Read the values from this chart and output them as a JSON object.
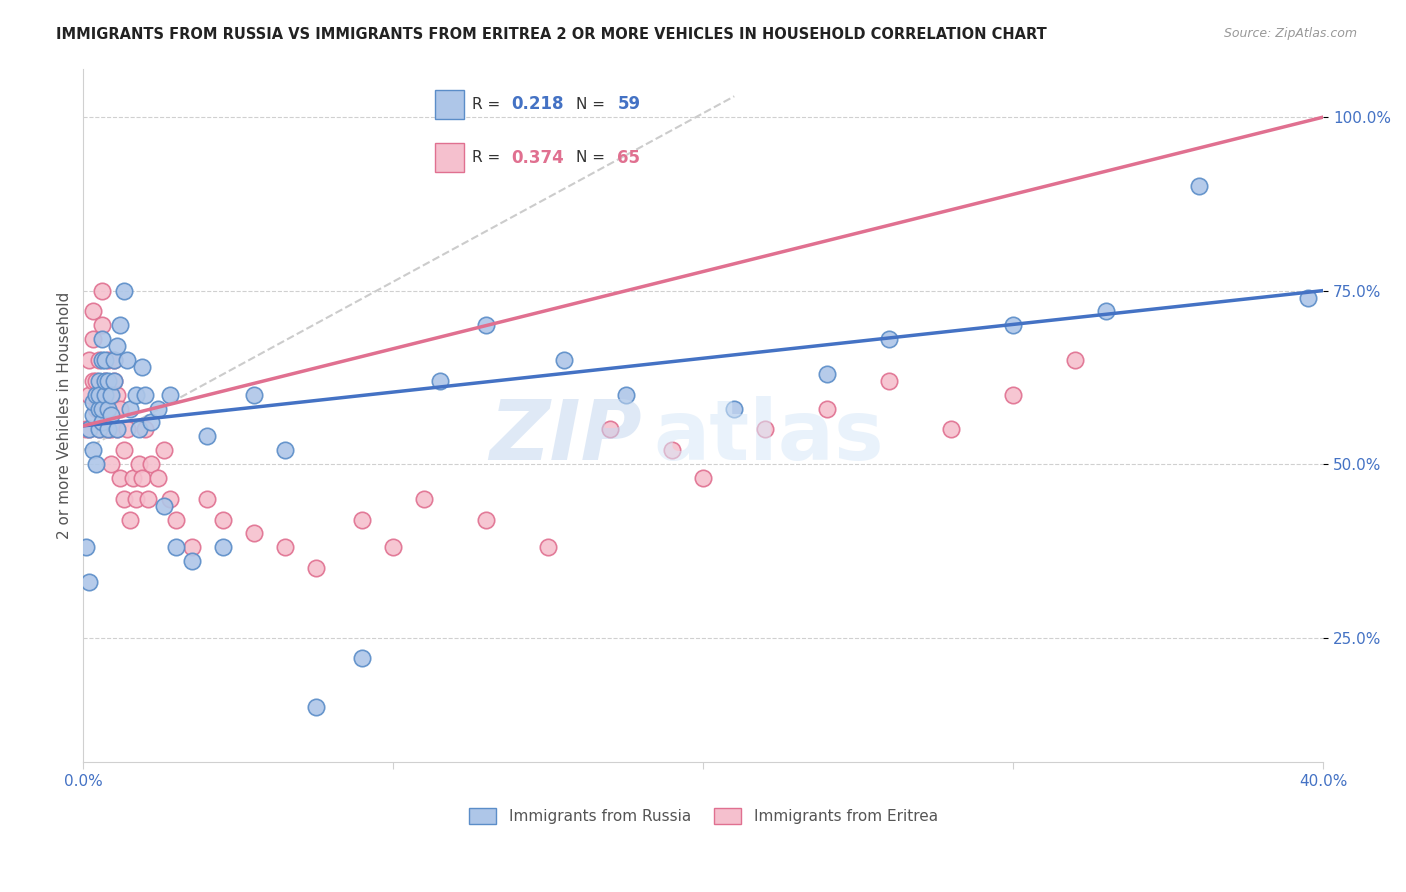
{
  "title": "IMMIGRANTS FROM RUSSIA VS IMMIGRANTS FROM ERITREA 2 OR MORE VEHICLES IN HOUSEHOLD CORRELATION CHART",
  "source": "Source: ZipAtlas.com",
  "ylabel": "2 or more Vehicles in Household",
  "xlim": [
    0.0,
    0.4
  ],
  "ylim": [
    0.07,
    1.07
  ],
  "xticks": [
    0.0,
    0.1,
    0.2,
    0.3,
    0.4
  ],
  "xticklabels": [
    "0.0%",
    "",
    "",
    "",
    "40.0%"
  ],
  "yticks": [
    0.25,
    0.5,
    0.75,
    1.0
  ],
  "yticklabels": [
    "25.0%",
    "50.0%",
    "75.0%",
    "100.0%"
  ],
  "russia_R": 0.218,
  "russia_N": 59,
  "eritrea_R": 0.374,
  "eritrea_N": 65,
  "russia_color": "#aec6e8",
  "eritrea_color": "#f5c0ce",
  "russia_edge_color": "#5b8dc8",
  "eritrea_edge_color": "#e07090",
  "russia_line_color": "#4472c4",
  "eritrea_line_color": "#e07090",
  "background_color": "#ffffff",
  "watermark_zip": "ZIP",
  "watermark_atlas": "atlas",
  "tick_color": "#4472c4",
  "grid_color": "#d0d0d0",
  "russia_x": [
    0.001,
    0.002,
    0.002,
    0.003,
    0.003,
    0.003,
    0.004,
    0.004,
    0.005,
    0.005,
    0.005,
    0.005,
    0.006,
    0.006,
    0.006,
    0.006,
    0.007,
    0.007,
    0.007,
    0.008,
    0.008,
    0.008,
    0.009,
    0.009,
    0.01,
    0.01,
    0.011,
    0.011,
    0.012,
    0.013,
    0.014,
    0.015,
    0.017,
    0.018,
    0.019,
    0.02,
    0.022,
    0.024,
    0.026,
    0.028,
    0.03,
    0.035,
    0.04,
    0.045,
    0.055,
    0.065,
    0.075,
    0.09,
    0.115,
    0.13,
    0.155,
    0.175,
    0.21,
    0.24,
    0.26,
    0.3,
    0.33,
    0.36,
    0.395
  ],
  "russia_y": [
    0.38,
    0.55,
    0.33,
    0.57,
    0.52,
    0.59,
    0.6,
    0.5,
    0.58,
    0.55,
    0.62,
    0.6,
    0.65,
    0.56,
    0.68,
    0.58,
    0.6,
    0.62,
    0.65,
    0.55,
    0.62,
    0.58,
    0.57,
    0.6,
    0.65,
    0.62,
    0.67,
    0.55,
    0.7,
    0.75,
    0.65,
    0.58,
    0.6,
    0.55,
    0.64,
    0.6,
    0.56,
    0.58,
    0.44,
    0.6,
    0.38,
    0.36,
    0.54,
    0.38,
    0.6,
    0.52,
    0.15,
    0.22,
    0.62,
    0.7,
    0.65,
    0.6,
    0.58,
    0.63,
    0.68,
    0.7,
    0.72,
    0.9,
    0.74
  ],
  "eritrea_x": [
    0.001,
    0.002,
    0.002,
    0.002,
    0.003,
    0.003,
    0.003,
    0.004,
    0.004,
    0.005,
    0.005,
    0.005,
    0.006,
    0.006,
    0.006,
    0.007,
    0.007,
    0.008,
    0.008,
    0.008,
    0.009,
    0.009,
    0.009,
    0.01,
    0.01,
    0.01,
    0.011,
    0.011,
    0.012,
    0.012,
    0.013,
    0.013,
    0.014,
    0.015,
    0.016,
    0.017,
    0.018,
    0.019,
    0.02,
    0.021,
    0.022,
    0.024,
    0.026,
    0.028,
    0.03,
    0.035,
    0.04,
    0.045,
    0.055,
    0.065,
    0.075,
    0.09,
    0.1,
    0.11,
    0.13,
    0.15,
    0.17,
    0.19,
    0.2,
    0.22,
    0.24,
    0.26,
    0.28,
    0.3,
    0.32
  ],
  "eritrea_y": [
    0.55,
    0.6,
    0.65,
    0.55,
    0.68,
    0.72,
    0.62,
    0.58,
    0.62,
    0.55,
    0.6,
    0.65,
    0.7,
    0.75,
    0.58,
    0.58,
    0.62,
    0.55,
    0.6,
    0.65,
    0.5,
    0.55,
    0.6,
    0.58,
    0.62,
    0.65,
    0.6,
    0.55,
    0.58,
    0.48,
    0.52,
    0.45,
    0.55,
    0.42,
    0.48,
    0.45,
    0.5,
    0.48,
    0.55,
    0.45,
    0.5,
    0.48,
    0.52,
    0.45,
    0.42,
    0.38,
    0.45,
    0.42,
    0.4,
    0.38,
    0.35,
    0.42,
    0.38,
    0.45,
    0.42,
    0.38,
    0.55,
    0.52,
    0.48,
    0.55,
    0.58,
    0.62,
    0.55,
    0.6,
    0.65
  ],
  "russia_trendline": [
    0.555,
    0.75
  ],
  "eritrea_trendline": [
    0.555,
    1.0
  ],
  "dashed_line": [
    [
      0.0,
      0.21
    ],
    [
      0.52,
      1.03
    ]
  ]
}
